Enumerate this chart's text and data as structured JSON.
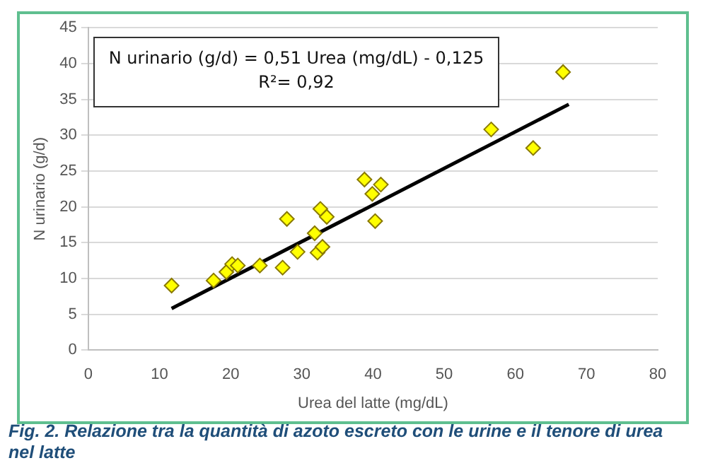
{
  "chart_data": {
    "type": "scatter",
    "xlabel": "Urea del latte (mg/dL)",
    "ylabel": "N urinario (g/d)",
    "xlim": [
      0,
      80
    ],
    "xticks": [
      0,
      10,
      20,
      30,
      40,
      50,
      60,
      70,
      80
    ],
    "ylim": [
      0,
      45
    ],
    "yticks": [
      0,
      5,
      10,
      15,
      20,
      25,
      30,
      35,
      40,
      45
    ],
    "grid": "y",
    "legend": false,
    "marker": "diamond",
    "series": [
      {
        "color": "#ffff00",
        "x": [
          11.7,
          17.6,
          19.4,
          20.2,
          21.0,
          24.1,
          27.3,
          27.9,
          29.4,
          31.8,
          32.6,
          32.2,
          32.9,
          33.5,
          38.8,
          39.9,
          41.1,
          40.3,
          56.6,
          62.5,
          66.7
        ],
        "values": [
          9.0,
          9.7,
          10.9,
          12.0,
          11.8,
          11.8,
          11.5,
          18.3,
          13.7,
          16.3,
          19.7,
          13.6,
          14.4,
          18.6,
          23.8,
          21.8,
          23.1,
          18.0,
          30.8,
          28.2,
          38.8
        ]
      },
      {
        "type": "line",
        "color": "#000000",
        "marker": "none",
        "line_style": "solid",
        "x": [
          11.7,
          67.5
        ],
        "values": [
          5.8,
          34.3
        ]
      }
    ],
    "annotations": [
      "N urinario (g/d) = 0,51 Urea (mg/dL) - 0,125",
      "R²= 0,92",
      "Fig. 2. Relazione tra la quantità di azoto escreto con le urine e il tenore di urea nel latte"
    ]
  }
}
